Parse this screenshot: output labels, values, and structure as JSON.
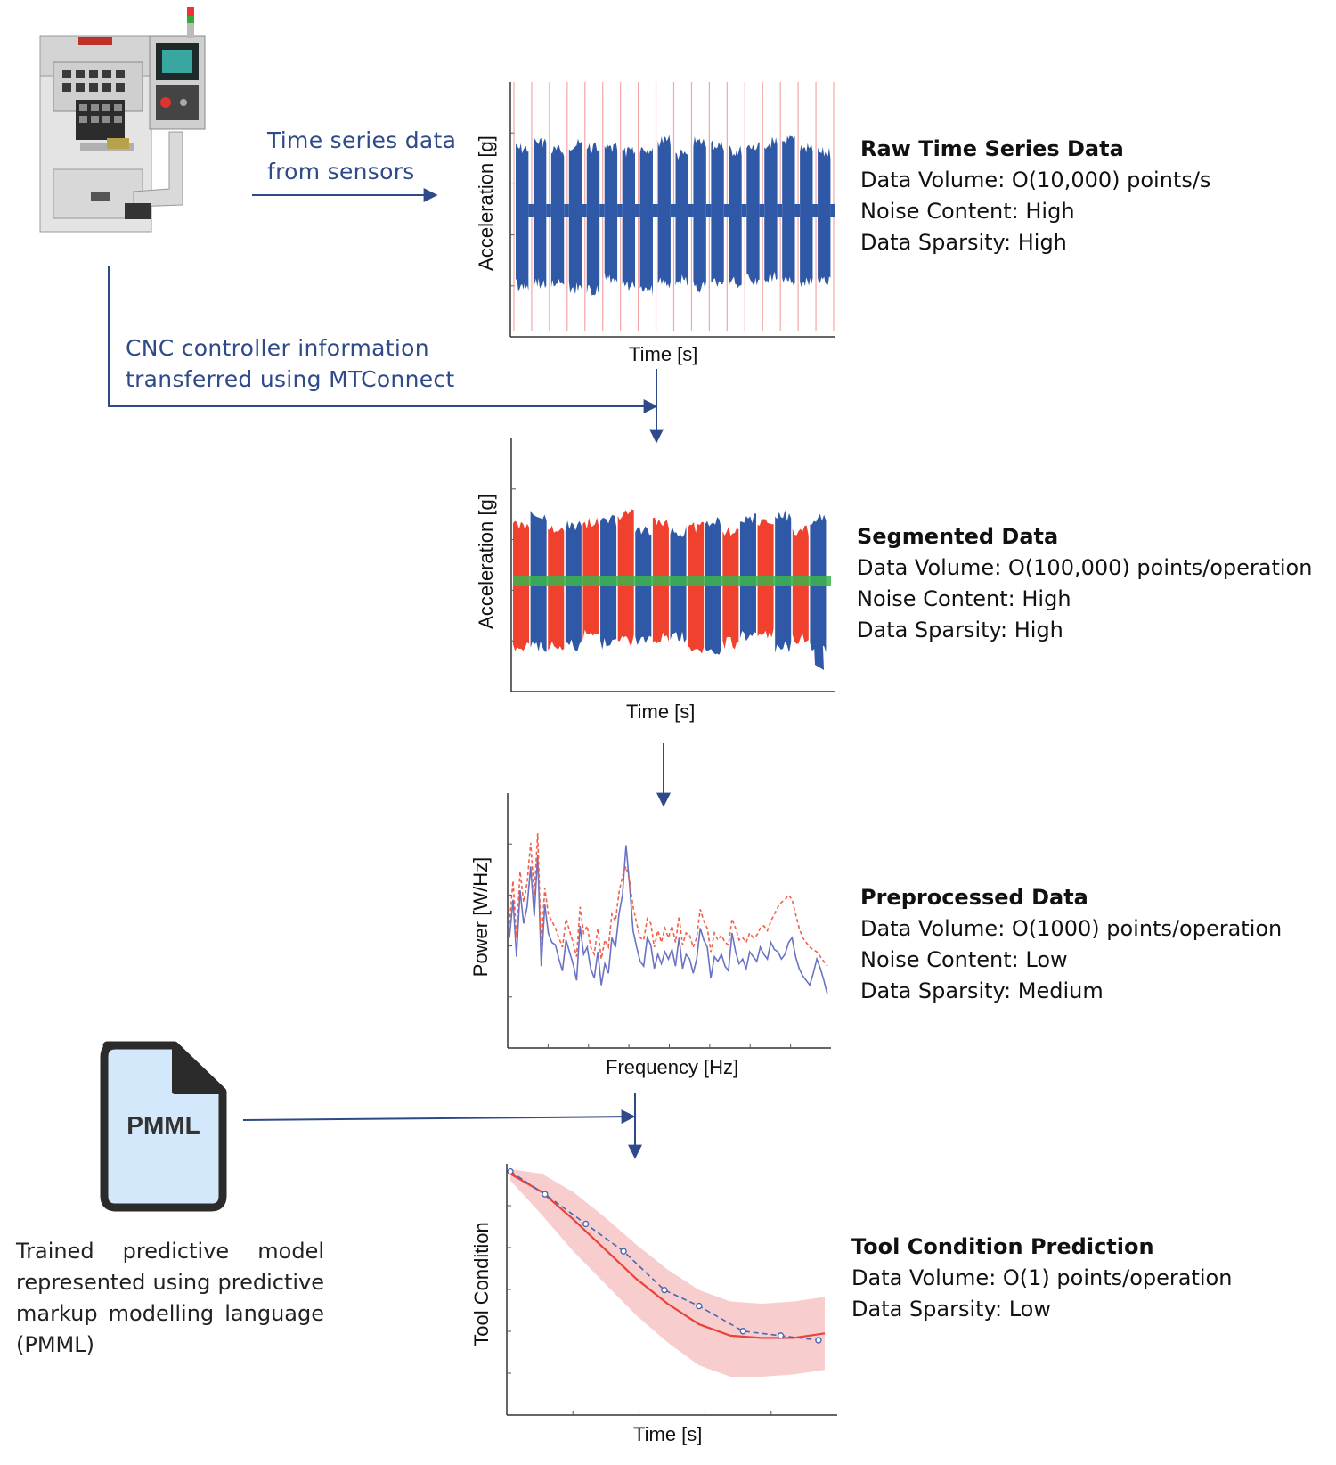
{
  "colors": {
    "arrow": "#2f4a8a",
    "signal_blue": "#2f59a6",
    "signal_red": "#f0412f",
    "segment_green": "#3cb44b",
    "marker_pink": "#f4a6a6",
    "band_pink": "#f7c4c4"
  },
  "machine": {
    "icon": "cnc-machine-icon"
  },
  "flow": {
    "sensors_label": [
      "Time series data",
      "from sensors"
    ],
    "mtconnect_label": [
      "CNC controller information",
      "transferred using MTConnect"
    ]
  },
  "stages": [
    {
      "title": "Raw Time Series Data",
      "lines": [
        "Data Volume: O(10,000) points/s",
        "Noise Content: High",
        "Data Sparsity: High"
      ],
      "xlabel": "Time [s]",
      "ylabel": "Acceleration [g]"
    },
    {
      "title": "Segmented Data",
      "lines": [
        "Data Volume: O(100,000) points/operation",
        "Noise Content: High",
        "Data Sparsity: High"
      ],
      "xlabel": "Time [s]",
      "ylabel": "Acceleration [g]"
    },
    {
      "title": "Preprocessed Data",
      "lines": [
        "Data Volume: O(1000) points/operation",
        "Noise Content: Low",
        "Data Sparsity: Medium"
      ],
      "xlabel": "Frequency [Hz]",
      "ylabel": "Power [W/Hz]"
    },
    {
      "title": "Tool Condition Prediction",
      "lines": [
        "Data Volume: O(1) points/operation",
        "Data Sparsity: Low"
      ],
      "xlabel": "Time [s]",
      "ylabel": "Tool Condition"
    }
  ],
  "pmml": {
    "icon_label": "PMML",
    "description": "Trained predictive model represented using predictive markup modelling language (PMML)"
  },
  "chart_data": [
    {
      "type": "line",
      "title": "",
      "xlabel": "Time [s]",
      "ylabel": "Acceleration [g]",
      "series": [
        {
          "values": []
        }
      ],
      "segment_count": 18,
      "grid": false
    },
    {
      "type": "line",
      "title": "",
      "xlabel": "Time [s]",
      "ylabel": "Acceleration [g]",
      "series": [
        {
          "values": []
        },
        {
          "values": []
        }
      ],
      "segment_count": 18,
      "grid": false
    },
    {
      "type": "line",
      "title": "",
      "xlabel": "Frequency [Hz]",
      "ylabel": "Power [W/Hz]",
      "series": [
        {
          "style": "solid",
          "color": "#6a72c4",
          "values": [
            0.42,
            0.58,
            0.34,
            0.62,
            0.48,
            0.55,
            0.72,
            0.51,
            0.77,
            0.3,
            0.56,
            0.44,
            0.4,
            0.39,
            0.33,
            0.28,
            0.41,
            0.36,
            0.31,
            0.24,
            0.47,
            0.35,
            0.38,
            0.29,
            0.25,
            0.36,
            0.22,
            0.31,
            0.27,
            0.42,
            0.38,
            0.52,
            0.6,
            0.81,
            0.64,
            0.45,
            0.38,
            0.32,
            0.3,
            0.42,
            0.39,
            0.29,
            0.35,
            0.31,
            0.36,
            0.33,
            0.37,
            0.3,
            0.42,
            0.29,
            0.35,
            0.33,
            0.27,
            0.33,
            0.46,
            0.41,
            0.38,
            0.25,
            0.34,
            0.32,
            0.35,
            0.3,
            0.28,
            0.44,
            0.36,
            0.31,
            0.33,
            0.29,
            0.36,
            0.34,
            0.32,
            0.38,
            0.35,
            0.33,
            0.4,
            0.37,
            0.36,
            0.33,
            0.35,
            0.4,
            0.42,
            0.34,
            0.29,
            0.26,
            0.24,
            0.22,
            0.27,
            0.33,
            0.29,
            0.24,
            0.18
          ]
        },
        {
          "style": "dashed",
          "color": "#f0604a",
          "values": [
            0.48,
            0.66,
            0.42,
            0.7,
            0.57,
            0.65,
            0.82,
            0.6,
            0.86,
            0.38,
            0.63,
            0.52,
            0.49,
            0.46,
            0.42,
            0.38,
            0.5,
            0.45,
            0.4,
            0.34,
            0.55,
            0.44,
            0.47,
            0.38,
            0.35,
            0.46,
            0.33,
            0.41,
            0.38,
            0.52,
            0.49,
            0.61,
            0.68,
            0.72,
            0.66,
            0.55,
            0.48,
            0.42,
            0.41,
            0.5,
            0.48,
            0.38,
            0.45,
            0.4,
            0.46,
            0.42,
            0.47,
            0.4,
            0.51,
            0.39,
            0.44,
            0.43,
            0.38,
            0.42,
            0.54,
            0.49,
            0.46,
            0.36,
            0.44,
            0.41,
            0.43,
            0.4,
            0.39,
            0.5,
            0.46,
            0.41,
            0.42,
            0.4,
            0.44,
            0.42,
            0.43,
            0.46,
            0.47,
            0.45,
            0.49,
            0.52,
            0.55,
            0.57,
            0.58,
            0.6,
            0.58,
            0.52,
            0.46,
            0.42,
            0.4,
            0.38,
            0.37,
            0.36,
            0.34,
            0.32,
            0.3
          ]
        }
      ],
      "grid": false
    },
    {
      "type": "line",
      "title": "",
      "xlabel": "Time [s]",
      "ylabel": "Tool Condition",
      "series": [
        {
          "style": "solid",
          "color": "#e8433a",
          "x": [
            0,
            0.1,
            0.2,
            0.3,
            0.4,
            0.5,
            0.6,
            0.7,
            0.8,
            0.9,
            1.0
          ],
          "values": [
            0.98,
            0.9,
            0.78,
            0.65,
            0.52,
            0.41,
            0.32,
            0.27,
            0.26,
            0.26,
            0.28
          ]
        },
        {
          "style": "band",
          "color": "#f7c4c4",
          "x": [
            0,
            0.1,
            0.2,
            0.3,
            0.4,
            0.5,
            0.6,
            0.7,
            0.8,
            0.9,
            1.0
          ],
          "lower": [
            0.95,
            0.8,
            0.64,
            0.5,
            0.36,
            0.24,
            0.14,
            0.09,
            0.09,
            0.1,
            0.12
          ],
          "upper": [
            1.0,
            0.98,
            0.9,
            0.79,
            0.67,
            0.56,
            0.47,
            0.42,
            0.41,
            0.42,
            0.44
          ]
        },
        {
          "style": "dashed-markers",
          "color": "#4a68b0",
          "x": [
            0,
            0.11,
            0.24,
            0.36,
            0.49,
            0.6,
            0.74,
            0.86,
            0.98
          ],
          "values": [
            0.99,
            0.89,
            0.76,
            0.64,
            0.47,
            0.4,
            0.29,
            0.27,
            0.25
          ]
        }
      ],
      "grid": false
    }
  ]
}
